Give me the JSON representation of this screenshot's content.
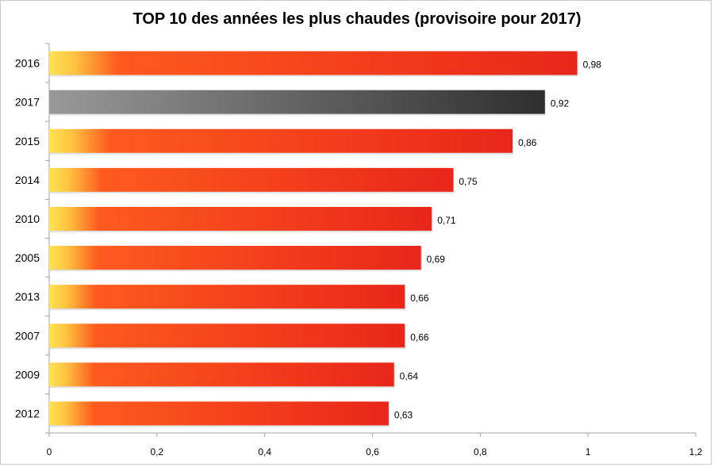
{
  "chart_data": {
    "type": "bar",
    "orientation": "horizontal",
    "title": "TOP 10 des années les plus chaudes (provisoire pour 2017)",
    "categories": [
      "2016",
      "2017",
      "2015",
      "2014",
      "2010",
      "2005",
      "2013",
      "2007",
      "2009",
      "2012"
    ],
    "values": [
      0.98,
      0.92,
      0.86,
      0.75,
      0.71,
      0.69,
      0.66,
      0.66,
      0.64,
      0.63
    ],
    "data_labels": [
      "0,98",
      "0,92",
      "0,86",
      "0,75",
      "0,71",
      "0,69",
      "0,66",
      "0,66",
      "0,64",
      "0,63"
    ],
    "highlight_category": "2017",
    "xlim": [
      0,
      1.2
    ],
    "x_ticks": [
      0,
      0.2,
      0.4,
      0.6,
      0.8,
      1,
      1.2
    ],
    "x_tick_labels": [
      "0",
      "0,2",
      "0,4",
      "0,6",
      "0,8",
      "1",
      "1,2"
    ],
    "xlabel": "",
    "ylabel": "",
    "grid": false,
    "legend": "none",
    "colors": {
      "gradient_start": "#FFE255",
      "gradient_mid": "#FF5A1E",
      "gradient_end": "#E8261A",
      "highlight_start": "#999999",
      "highlight_end": "#2e2e2e"
    }
  }
}
